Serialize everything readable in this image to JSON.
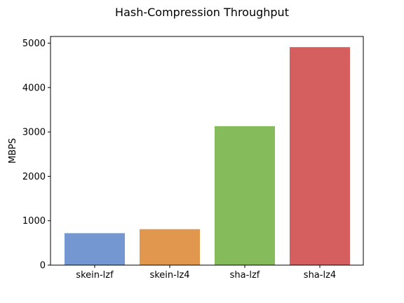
{
  "chart_data": {
    "type": "bar",
    "title": "Hash-Compression Throughput",
    "xlabel": "",
    "ylabel": "MBPS",
    "categories": [
      "skein-lzf",
      "skein-lz4",
      "sha-lzf",
      "sha-lz4"
    ],
    "values": [
      720,
      810,
      3130,
      4910
    ],
    "colors": [
      "#7597d1",
      "#e1984e",
      "#85bb5b",
      "#d55f5f"
    ],
    "ylim": [
      0,
      5150
    ],
    "yticks": [
      0,
      1000,
      2000,
      3000,
      4000,
      5000
    ],
    "grid": false
  }
}
